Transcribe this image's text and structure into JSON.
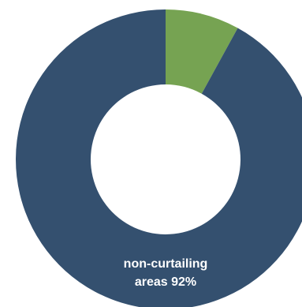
{
  "chart_data": {
    "type": "pie",
    "donut": true,
    "slices": [
      {
        "value": 8,
        "color": "#76a352",
        "label_line1": "",
        "label_line2": ""
      },
      {
        "value": 92,
        "color": "#34506f",
        "label_line1": "non-curtailing",
        "label_line2": "areas 92%"
      }
    ],
    "start_angle_deg": 0,
    "direction": "clockwise",
    "legend": "none"
  }
}
